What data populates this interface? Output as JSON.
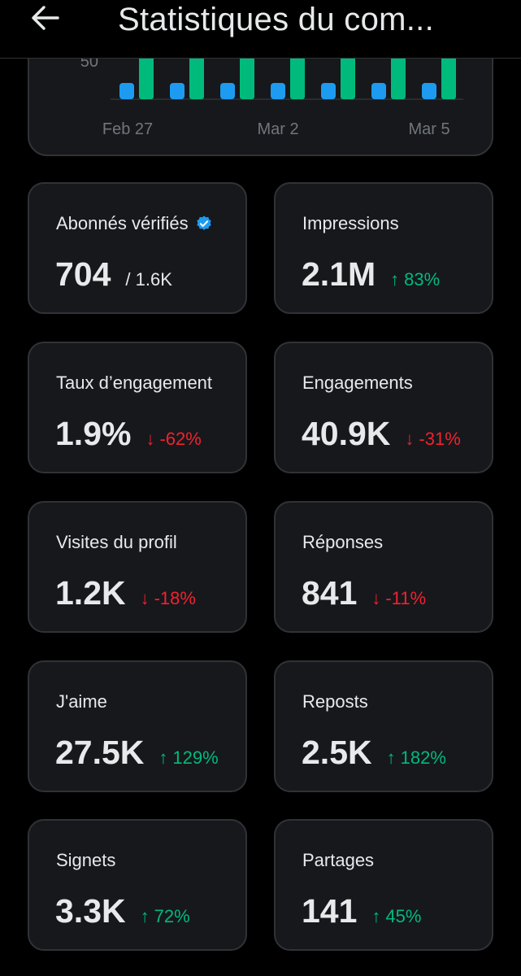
{
  "header": {
    "back_icon": "arrow-left-icon",
    "title": "Statistiques du com..."
  },
  "chart_data": {
    "type": "bar",
    "x_tick_labels": [
      "Feb 27",
      "Mar 2",
      "Mar 5"
    ],
    "y_tick_labels": [
      "50"
    ],
    "series_colors": [
      "#1d9bf0",
      "#00ba7c"
    ],
    "pairs": 7
  },
  "colors": {
    "up": "#00ba7c",
    "down": "#f4212e",
    "verified": "#1d9bf0"
  },
  "cards": [
    {
      "label": "Abonnés vérifiés",
      "value": "704",
      "sub": "/ 1.6K",
      "verified": true
    },
    {
      "label": "Impressions",
      "value": "2.1M",
      "delta": "83%",
      "dir": "up"
    },
    {
      "label": "Taux d’engagement",
      "value": "1.9%",
      "delta": "-62%",
      "dir": "down"
    },
    {
      "label": "Engagements",
      "value": "40.9K",
      "delta": "-31%",
      "dir": "down"
    },
    {
      "label": "Visites du profil",
      "value": "1.2K",
      "delta": "-18%",
      "dir": "down"
    },
    {
      "label": "Réponses",
      "value": "841",
      "delta": "-11%",
      "dir": "down"
    },
    {
      "label": "J'aime",
      "value": "27.5K",
      "delta": "129%",
      "dir": "up"
    },
    {
      "label": "Reposts",
      "value": "2.5K",
      "delta": "182%",
      "dir": "up"
    },
    {
      "label": "Signets",
      "value": "3.3K",
      "delta": "72%",
      "dir": "up"
    },
    {
      "label": "Partages",
      "value": "141",
      "delta": "45%",
      "dir": "up"
    }
  ]
}
